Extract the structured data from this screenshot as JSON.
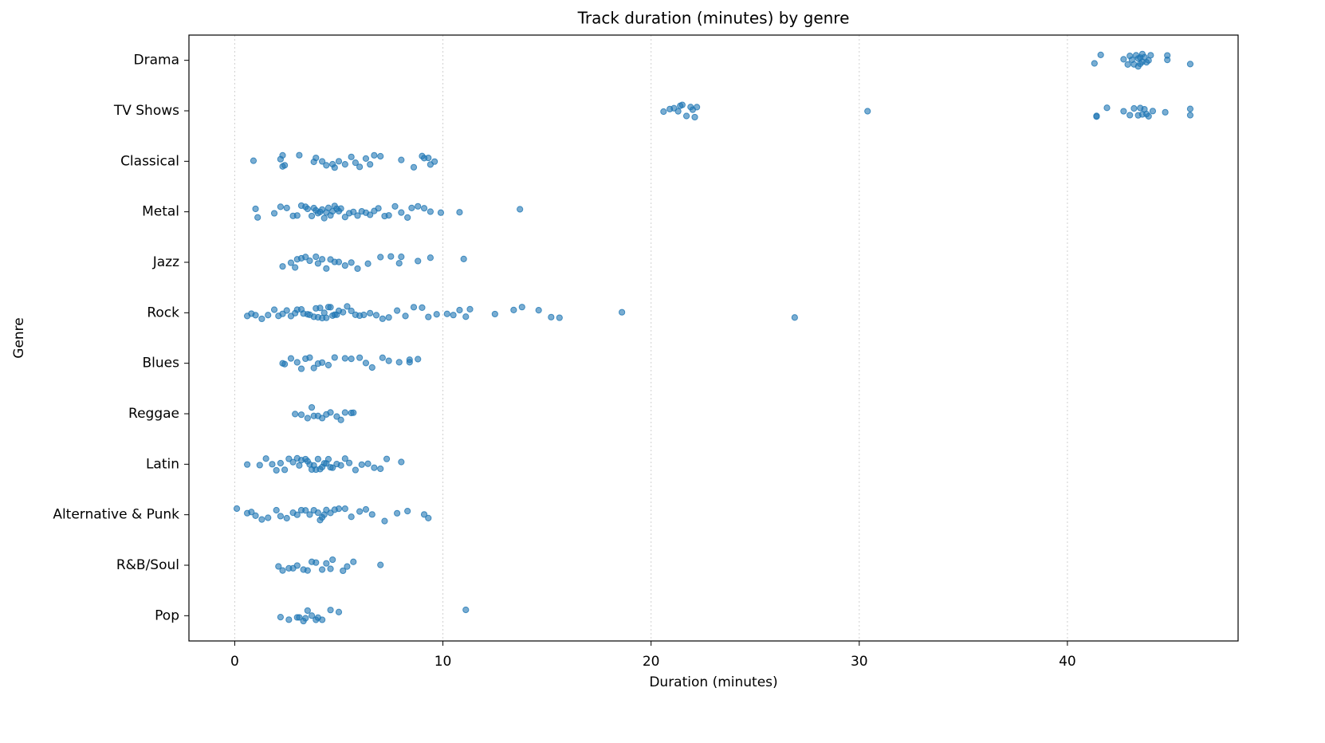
{
  "chart_data": {
    "type": "strip",
    "title": "Track duration (minutes) by genre",
    "x_label": "Duration (minutes)",
    "y_label": "Genre",
    "color": "#1f77b4",
    "grid": true,
    "xlim": [
      -2.2,
      48.2
    ],
    "xticks": [
      0,
      10,
      20,
      30,
      40
    ],
    "categories": [
      "Drama",
      "TV Shows",
      "Classical",
      "Metal",
      "Jazz",
      "Rock",
      "Blues",
      "Reggae",
      "Latin",
      "Alternative & Punk",
      "R&B/Soul",
      "Pop"
    ],
    "values": [
      [
        41.3,
        41.6,
        42.7,
        42.9,
        43.0,
        43.2,
        43.3,
        43.4,
        43.5,
        43.5,
        43.6,
        43.7,
        43.8,
        43.9,
        44.0,
        43.4,
        43.6,
        43.1,
        44.8,
        44.8,
        45.9
      ],
      [
        20.6,
        20.9,
        21.1,
        21.3,
        21.4,
        21.5,
        21.7,
        21.9,
        22.0,
        22.1,
        22.2,
        30.4,
        41.4,
        41.4,
        41.9,
        42.7,
        43.0,
        43.2,
        43.4,
        43.5,
        43.6,
        43.7,
        43.8,
        43.9,
        44.1,
        44.7,
        45.9,
        45.9
      ],
      [
        0.9,
        2.2,
        2.3,
        2.3,
        2.4,
        3.1,
        3.8,
        3.9,
        4.2,
        4.4,
        4.7,
        4.8,
        5.0,
        5.3,
        5.6,
        5.8,
        6.0,
        6.3,
        6.5,
        6.7,
        7.0,
        8.0,
        8.6,
        9.0,
        9.1,
        9.3,
        9.4,
        9.6
      ],
      [
        1.0,
        1.1,
        1.9,
        2.2,
        2.5,
        2.8,
        3.0,
        3.2,
        3.4,
        3.5,
        3.7,
        3.8,
        3.9,
        4.0,
        4.1,
        4.2,
        4.3,
        4.4,
        4.5,
        4.6,
        4.7,
        4.8,
        4.9,
        5.0,
        5.1,
        5.3,
        5.5,
        5.7,
        5.9,
        6.1,
        6.3,
        6.5,
        6.7,
        6.9,
        7.2,
        7.4,
        7.7,
        8.0,
        8.3,
        8.5,
        8.8,
        9.1,
        9.4,
        9.9,
        10.8,
        13.7
      ],
      [
        2.3,
        2.7,
        2.9,
        3.0,
        3.2,
        3.4,
        3.6,
        3.9,
        4.0,
        4.2,
        4.4,
        4.6,
        4.8,
        5.0,
        5.3,
        5.6,
        5.9,
        6.4,
        7.0,
        7.5,
        7.9,
        8.0,
        8.8,
        9.4,
        11.0
      ],
      [
        0.6,
        0.8,
        1.0,
        1.3,
        1.6,
        1.9,
        2.1,
        2.3,
        2.5,
        2.7,
        2.9,
        3.0,
        3.2,
        3.3,
        3.5,
        3.6,
        3.8,
        3.9,
        4.0,
        4.1,
        4.2,
        4.3,
        4.4,
        4.5,
        4.6,
        4.7,
        4.8,
        4.9,
        5.0,
        5.2,
        5.4,
        5.6,
        5.8,
        6.0,
        6.2,
        6.5,
        6.8,
        7.1,
        7.4,
        7.8,
        8.2,
        8.6,
        9.0,
        9.3,
        9.7,
        10.2,
        10.5,
        10.8,
        11.1,
        11.3,
        12.5,
        13.4,
        13.8,
        14.6,
        15.2,
        15.6,
        18.6,
        26.9
      ],
      [
        2.3,
        2.4,
        2.7,
        3.0,
        3.2,
        3.4,
        3.6,
        3.8,
        4.0,
        4.2,
        4.5,
        4.8,
        5.3,
        5.6,
        6.0,
        6.3,
        6.6,
        7.1,
        7.4,
        7.9,
        8.4,
        8.4,
        8.8
      ],
      [
        2.9,
        3.2,
        3.5,
        3.7,
        3.8,
        4.0,
        4.2,
        4.4,
        4.6,
        4.9,
        5.1,
        5.3,
        5.6,
        5.7
      ],
      [
        0.6,
        1.2,
        1.5,
        1.8,
        2.0,
        2.2,
        2.4,
        2.6,
        2.8,
        3.0,
        3.1,
        3.2,
        3.4,
        3.5,
        3.6,
        3.7,
        3.8,
        3.9,
        4.0,
        4.1,
        4.2,
        4.3,
        4.4,
        4.5,
        4.6,
        4.7,
        4.9,
        5.1,
        5.3,
        5.5,
        5.8,
        6.1,
        6.4,
        6.7,
        7.0,
        7.3,
        8.0
      ],
      [
        0.1,
        0.6,
        0.8,
        1.0,
        1.3,
        1.6,
        2.0,
        2.2,
        2.5,
        2.8,
        3.0,
        3.2,
        3.4,
        3.6,
        3.8,
        4.0,
        4.1,
        4.2,
        4.3,
        4.4,
        4.6,
        4.8,
        5.0,
        5.3,
        5.6,
        6.0,
        6.3,
        6.6,
        7.2,
        7.8,
        8.3,
        9.1,
        9.3
      ],
      [
        2.1,
        2.3,
        2.6,
        2.8,
        3.0,
        3.3,
        3.5,
        3.7,
        3.9,
        4.2,
        4.4,
        4.6,
        4.7,
        5.2,
        5.4,
        5.7,
        7.0
      ],
      [
        2.2,
        2.6,
        3.0,
        3.1,
        3.3,
        3.4,
        3.5,
        3.7,
        3.9,
        4.0,
        4.2,
        4.6,
        5.0,
        11.1
      ]
    ]
  }
}
